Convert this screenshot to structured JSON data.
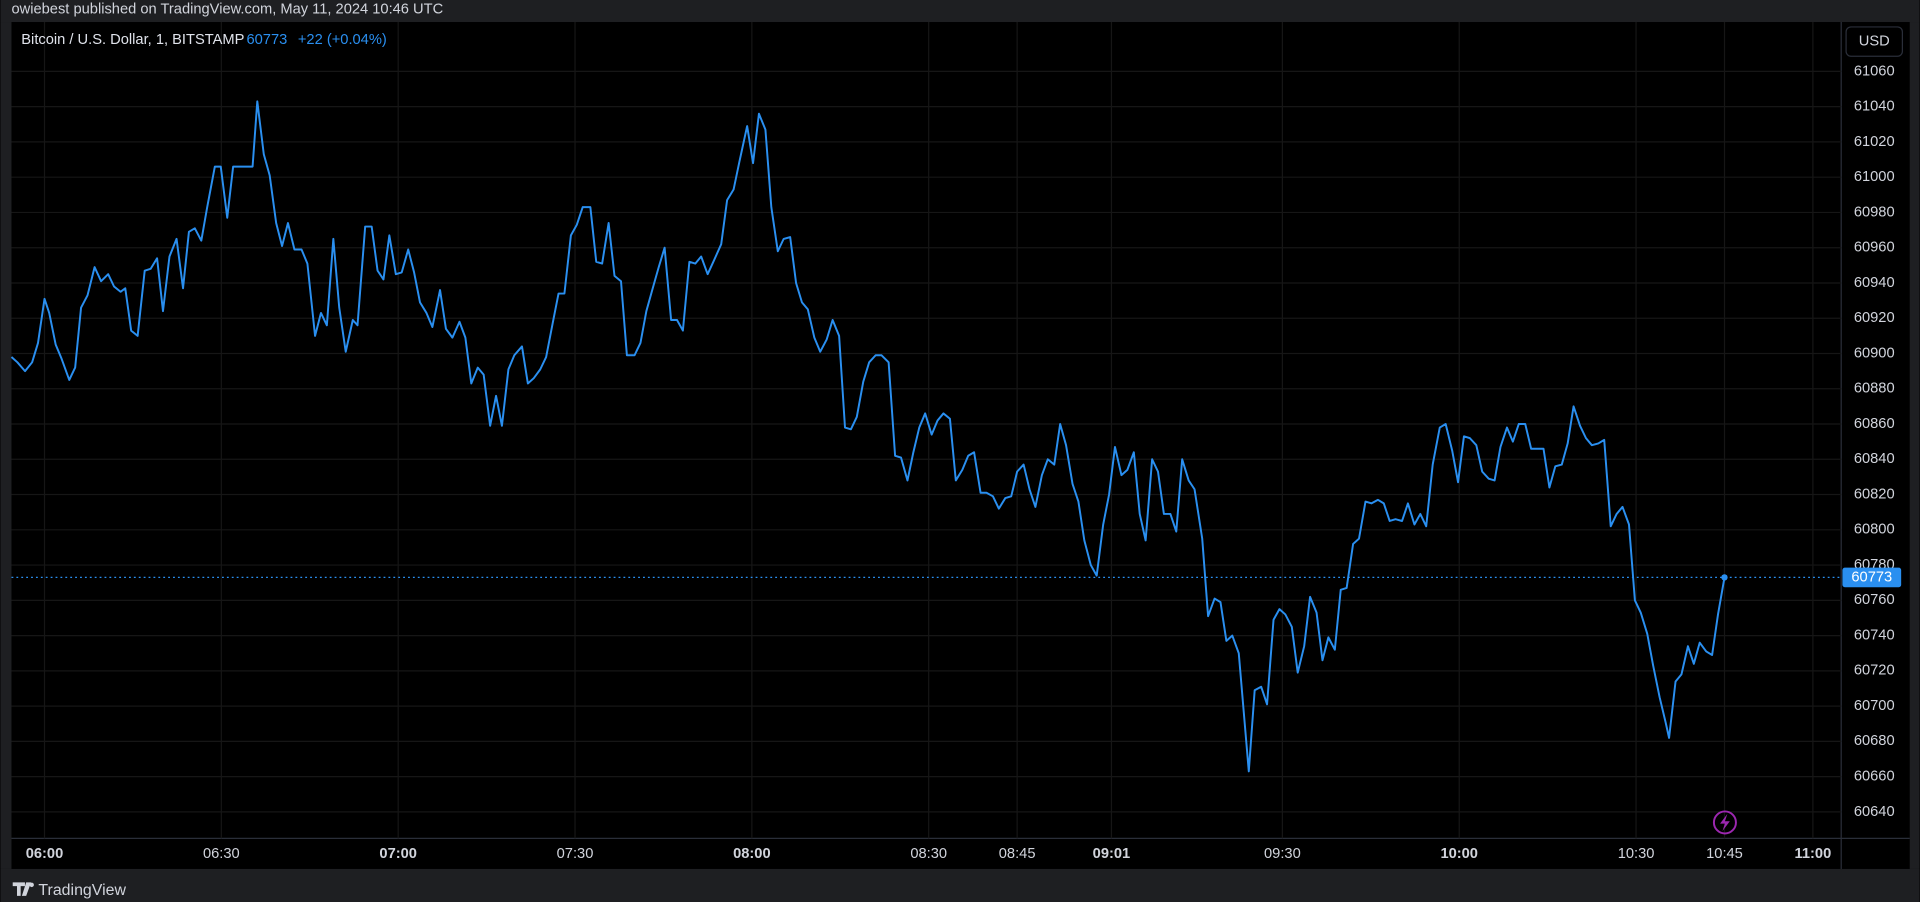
{
  "publisher": "owiebest published on TradingView.com, May 11, 2024 10:46 UTC",
  "brand": "TradingView",
  "chart_data": {
    "type": "line",
    "title": "Bitcoin / U.S. Dollar, 1, BITSTAMP",
    "last": 60773,
    "change_label": "+22 (+0.04%)",
    "currency": "USD",
    "color": "#2a8ff0",
    "grid": true,
    "xlim": [
      354.4,
      664.8
    ],
    "ylim": [
      60625,
      61088
    ],
    "yticks": [
      60640,
      60660,
      60680,
      60700,
      60720,
      60740,
      60760,
      60780,
      60800,
      60820,
      60840,
      60860,
      60880,
      60900,
      60920,
      60940,
      60960,
      60980,
      61000,
      61020,
      61040,
      61060
    ],
    "xticks": [
      {
        "value": 360,
        "label": "06:00"
      },
      {
        "value": 390,
        "label": "06:30"
      },
      {
        "value": 420,
        "label": "07:00"
      },
      {
        "value": 450,
        "label": "07:30"
      },
      {
        "value": 480,
        "label": "08:00"
      },
      {
        "value": 510,
        "label": "08:30"
      },
      {
        "value": 525,
        "label": "08:45"
      },
      {
        "value": 541,
        "label": "09:01"
      },
      {
        "value": 570,
        "label": "09:30"
      },
      {
        "value": 600,
        "label": "10:00"
      },
      {
        "value": 630,
        "label": "10:30"
      },
      {
        "value": 645,
        "label": "10:45"
      },
      {
        "value": 660,
        "label": "11:00"
      }
    ],
    "x": [
      354.4,
      355.4,
      356.7,
      357.9,
      358.9,
      360,
      360.8,
      361.9,
      362.9,
      364.2,
      365.2,
      366.2,
      367.3,
      368.5,
      369.6,
      370.8,
      371.8,
      372.9,
      373.7,
      374.7,
      375.8,
      377,
      378,
      379.1,
      380.1,
      381.2,
      382.4,
      383.5,
      384.5,
      385.5,
      386.6,
      387.6,
      388.9,
      389.9,
      391,
      392,
      393.2,
      394.2,
      395.3,
      396.1,
      397.2,
      398.2,
      399.3,
      400.3,
      401.3,
      402.4,
      403.6,
      404.6,
      405.9,
      406.9,
      407.9,
      409,
      410,
      411.1,
      412.3,
      413.1,
      414.4,
      415.5,
      416.5,
      417.5,
      418.5,
      419.6,
      420.6,
      421.7,
      422.7,
      423.7,
      424.8,
      425.8,
      427.1,
      428.1,
      429.2,
      430.4,
      431.4,
      432.4,
      433.5,
      434.5,
      435.6,
      436.6,
      437.6,
      438.7,
      439.7,
      441,
      442,
      443,
      444.1,
      445.1,
      446.2,
      447.2,
      448.2,
      449.3,
      450.3,
      451.3,
      452.6,
      453.6,
      454.6,
      455.7,
      456.7,
      457.8,
      458.8,
      460.1,
      461.1,
      462.1,
      463.1,
      464.2,
      465.2,
      466.3,
      467.3,
      468.3,
      469.4,
      470.4,
      471.4,
      472.5,
      473.6,
      474.8,
      475.8,
      476.9,
      477.9,
      479.2,
      480.2,
      481.2,
      482.3,
      483.3,
      484.4,
      485.4,
      486.5,
      487.5,
      488.5,
      489.5,
      490.6,
      491.6,
      492.7,
      493.7,
      494.8,
      495.8,
      496.8,
      497.8,
      498.9,
      499.9,
      501,
      502,
      503.2,
      504.3,
      505.3,
      506.4,
      507.4,
      508.4,
      509.4,
      510.5,
      511.5,
      512.5,
      513.6,
      514.6,
      515.7,
      516.7,
      517.7,
      518.8,
      519.8,
      520.9,
      521.9,
      523,
      524,
      525,
      526.1,
      527.1,
      528.1,
      529.2,
      530.2,
      531.3,
      532.3,
      533.3,
      534.4,
      535.4,
      536.4,
      537.5,
      538.5,
      539.6,
      540.6,
      541.6,
      542.7,
      543.7,
      544.8,
      545.8,
      546.8,
      547.9,
      548.9,
      549.9,
      551,
      552,
      553,
      554.1,
      555.1,
      556.4,
      557.4,
      558.5,
      559.5,
      560.5,
      561.5,
      562.6,
      564.3,
      565.3,
      566.4,
      567.4,
      568.5,
      569.5,
      570.5,
      571.6,
      572.6,
      573.7,
      574.7,
      575.8,
      576.8,
      577.8,
      578.9,
      579.9,
      580.9,
      582,
      583,
      584.1,
      585.1,
      586.2,
      587.2,
      588.2,
      589.2,
      590.3,
      591.3,
      592.4,
      593.4,
      594.4,
      595.5,
      596.7,
      597.7,
      598.8,
      599.8,
      600.8,
      601.8,
      602.9,
      603.9,
      605,
      606,
      607,
      608.1,
      609.1,
      610.1,
      611.2,
      612.2,
      613.2,
      614.3,
      615.3,
      616.3,
      617.4,
      618.4,
      619.4,
      620.5,
      621.5,
      622.5,
      623.6,
      624.6,
      625.7,
      626.7,
      627.7,
      628.8,
      629.8,
      630.8,
      631.9,
      632.9,
      634,
      635,
      635.6,
      636.7,
      637.7,
      638.8,
      639.8,
      640.8,
      641.9,
      642.9,
      643.9,
      645
    ],
    "values": [
      60898,
      60895,
      60890,
      60895,
      60906,
      60931,
      60923,
      60905,
      60897,
      60885,
      60892,
      60926,
      60933,
      60949,
      60941,
      60945,
      60938,
      60935,
      60937,
      60913,
      60910,
      60947,
      60948,
      60954,
      60924,
      60955,
      60965,
      60937,
      60969,
      60971,
      60964,
      60983,
      61006,
      61006,
      60977,
      61006,
      61006,
      61006,
      61006,
      61043,
      61013,
      61001,
      60974,
      60961,
      60974,
      60959,
      60959,
      60951,
      60910,
      60923,
      60916,
      60965,
      60926,
      60901,
      60919,
      60916,
      60972,
      60972,
      60947,
      60942,
      60967,
      60945,
      60946,
      60959,
      60946,
      60929,
      60923,
      60915,
      60936,
      60914,
      60909,
      60918,
      60909,
      60883,
      60892,
      60888,
      60859,
      60876,
      60859,
      60891,
      60899,
      60904,
      60883,
      60886,
      60891,
      60898,
      60917,
      60934,
      60934,
      60967,
      60973,
      60983,
      60983,
      60952,
      60951,
      60974,
      60944,
      60941,
      60899,
      60899,
      60906,
      60924,
      60936,
      60949,
      60960,
      60919,
      60919,
      60913,
      60952,
      60951,
      60955,
      60945,
      60953,
      60962,
      60987,
      60993,
      61009,
      61029,
      61008,
      61036,
      61027,
      60983,
      60958,
      60965,
      60966,
      60940,
      60929,
      60925,
      60909,
      60901,
      60908,
      60919,
      60910,
      60858,
      60857,
      60864,
      60884,
      60895,
      60899,
      60899,
      60895,
      60842,
      60841,
      60828,
      60844,
      60858,
      60866,
      60854,
      60862,
      60866,
      60863,
      60828,
      60834,
      60842,
      60844,
      60821,
      60821,
      60819,
      60812,
      60818,
      60819,
      60833,
      60837,
      60823,
      60813,
      60831,
      60840,
      60837,
      60860,
      60848,
      60826,
      60816,
      60794,
      60780,
      60774,
      60803,
      60820,
      60847,
      60831,
      60834,
      60844,
      60809,
      60794,
      60840,
      60833,
      60809,
      60809,
      60799,
      60840,
      60828,
      60823,
      60795,
      60751,
      60761,
      60759,
      60737,
      60740,
      60730,
      60663,
      60709,
      60711,
      60701,
      60749,
      60755,
      60752,
      60745,
      60719,
      60734,
      60762,
      60753,
      60726,
      60739,
      60732,
      60766,
      60767,
      60792,
      60795,
      60816,
      60815,
      60817,
      60815,
      60805,
      60806,
      60805,
      60815,
      60803,
      60809,
      60802,
      60837,
      60858,
      60860,
      60845,
      60827,
      60853,
      60852,
      60848,
      60833,
      60829,
      60828,
      60847,
      60858,
      60850,
      60860,
      60860,
      60846,
      60846,
      60846,
      60824,
      60836,
      60837,
      60849,
      60870,
      60859,
      60852,
      60848,
      60849,
      60851,
      60802,
      60809,
      60813,
      60803,
      60760,
      60753,
      60741,
      60723,
      60705,
      60691,
      60682,
      60714,
      60718,
      60734,
      60724,
      60736,
      60731,
      60729,
      60752,
      60773
    ]
  }
}
